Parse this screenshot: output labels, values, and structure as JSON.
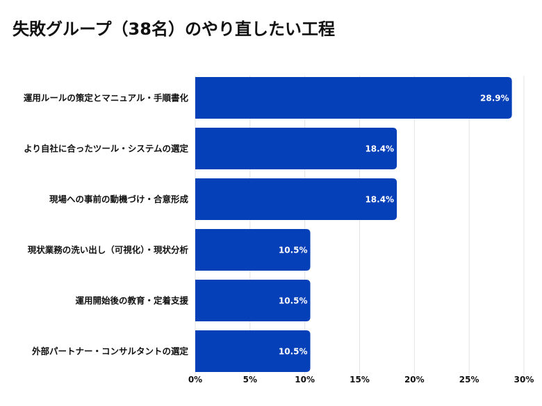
{
  "chart_data": {
    "type": "bar",
    "orientation": "horizontal",
    "title": "失敗グループ（38名）のやり直したい工程",
    "categories": [
      "運用ルールの策定とマニュアル・手順書化",
      "より自社に合ったツール・システムの選定",
      "現場への事前の動機づけ・合意形成",
      "現状業務の洗い出し（可視化）・現状分析",
      "運用開始後の教育・定着支援",
      "外部パートナー・コンサルタントの選定"
    ],
    "values": [
      28.9,
      18.4,
      18.4,
      10.5,
      10.5,
      10.5
    ],
    "data_labels": [
      "28.9%",
      "18.4%",
      "18.4%",
      "10.5%",
      "10.5%",
      "10.5%"
    ],
    "xlim": [
      0,
      30
    ],
    "xticks": [
      0,
      5,
      10,
      15,
      20,
      25,
      30
    ],
    "xtick_labels": [
      "0%",
      "5%",
      "10%",
      "15%",
      "20%",
      "25%",
      "30%"
    ],
    "xlabel": "",
    "ylabel": "",
    "grid": "vertical",
    "bar_color": "#0640b8"
  }
}
